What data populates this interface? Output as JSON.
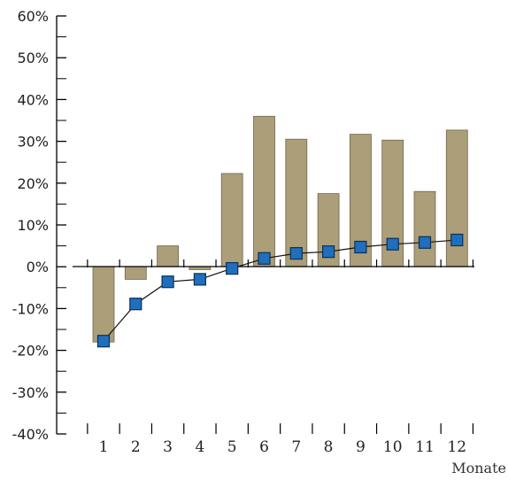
{
  "chart_data": {
    "type": "bar",
    "categories": [
      "1",
      "2",
      "3",
      "4",
      "5",
      "6",
      "7",
      "8",
      "9",
      "10",
      "11",
      "12"
    ],
    "series": [
      {
        "type": "bar",
        "values": [
          -18,
          -3,
          5,
          -0.7,
          22.3,
          36,
          30.5,
          17.5,
          31.7,
          30.3,
          18,
          32.7
        ],
        "color": "#ab9e78"
      },
      {
        "type": "line",
        "values": [
          -17.8,
          -8.9,
          -3.6,
          -3,
          -0.4,
          2,
          3.2,
          3.6,
          4.7,
          5.4,
          5.8,
          6.4
        ],
        "color": "#1f6fbd"
      }
    ],
    "xlabel": "Monate",
    "ylabel": "",
    "ylim": [
      -40,
      60
    ],
    "yticks": [
      -40,
      -30,
      -20,
      -10,
      0,
      10,
      20,
      30,
      40,
      50,
      60
    ],
    "ytick_labels": [
      "-40%",
      "-30%",
      "-20%",
      "-10%",
      "0%",
      "10%",
      "20%",
      "30%",
      "40%",
      "50%",
      "60%"
    ],
    "grid": false
  }
}
